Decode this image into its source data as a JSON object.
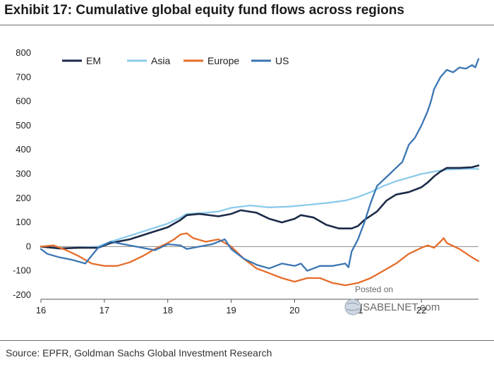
{
  "title": "Exhibit 17: Cumulative global equity fund flows across regions",
  "source": "Source: EPFR, Goldman Sachs Global Investment Research",
  "watermark": {
    "line1": "Posted on",
    "line2": "ISABELNET.com"
  },
  "chart_data": {
    "type": "line",
    "title": "Exhibit 17: Cumulative global equity fund flows across regions",
    "xlabel": "",
    "ylabel": "",
    "xlim": [
      16,
      22.9
    ],
    "ylim": [
      -200,
      800
    ],
    "y_ticks": [
      800,
      700,
      600,
      500,
      400,
      300,
      200,
      100,
      0,
      -100,
      -200
    ],
    "x_ticks": [
      16,
      17,
      18,
      19,
      20,
      21,
      22
    ],
    "x_tick_labels": [
      "16",
      "17",
      "18",
      "19",
      "20",
      "21",
      "22"
    ],
    "legend": "top-left",
    "series": [
      {
        "name": "EM",
        "color": "#1c2a48",
        "points": [
          [
            16,
            0
          ],
          [
            16.3,
            -8
          ],
          [
            16.6,
            -5
          ],
          [
            16.9,
            -5
          ],
          [
            17.1,
            15
          ],
          [
            17.4,
            30
          ],
          [
            17.7,
            55
          ],
          [
            18.0,
            80
          ],
          [
            18.2,
            110
          ],
          [
            18.3,
            130
          ],
          [
            18.5,
            135
          ],
          [
            18.8,
            125
          ],
          [
            19.0,
            135
          ],
          [
            19.15,
            150
          ],
          [
            19.4,
            140
          ],
          [
            19.6,
            115
          ],
          [
            19.8,
            100
          ],
          [
            20.0,
            115
          ],
          [
            20.1,
            130
          ],
          [
            20.3,
            120
          ],
          [
            20.5,
            90
          ],
          [
            20.7,
            75
          ],
          [
            20.9,
            75
          ],
          [
            21.0,
            85
          ],
          [
            21.1,
            110
          ],
          [
            21.3,
            145
          ],
          [
            21.45,
            190
          ],
          [
            21.6,
            215
          ],
          [
            21.8,
            225
          ],
          [
            22.0,
            245
          ],
          [
            22.1,
            265
          ],
          [
            22.2,
            290
          ],
          [
            22.3,
            310
          ],
          [
            22.4,
            325
          ],
          [
            22.6,
            325
          ],
          [
            22.8,
            328
          ],
          [
            22.9,
            335
          ]
        ]
      },
      {
        "name": "Asia",
        "color": "#8ccbec",
        "points": [
          [
            16,
            0
          ],
          [
            16.3,
            -8
          ],
          [
            16.6,
            -4
          ],
          [
            16.9,
            0
          ],
          [
            17.1,
            20
          ],
          [
            17.4,
            45
          ],
          [
            17.7,
            70
          ],
          [
            18.0,
            95
          ],
          [
            18.2,
            120
          ],
          [
            18.3,
            135
          ],
          [
            18.6,
            140
          ],
          [
            18.8,
            145
          ],
          [
            19.0,
            160
          ],
          [
            19.3,
            170
          ],
          [
            19.6,
            162
          ],
          [
            19.9,
            165
          ],
          [
            20.2,
            172
          ],
          [
            20.5,
            180
          ],
          [
            20.8,
            190
          ],
          [
            21.0,
            205
          ],
          [
            21.2,
            225
          ],
          [
            21.4,
            250
          ],
          [
            21.6,
            270
          ],
          [
            21.8,
            285
          ],
          [
            22.0,
            300
          ],
          [
            22.2,
            310
          ],
          [
            22.4,
            318
          ],
          [
            22.6,
            320
          ],
          [
            22.8,
            322
          ],
          [
            22.9,
            320
          ]
        ]
      },
      {
        "name": "Europe",
        "color": "#e56d2a",
        "points": [
          [
            16,
            0
          ],
          [
            16.2,
            5
          ],
          [
            16.4,
            -15
          ],
          [
            16.6,
            -40
          ],
          [
            16.8,
            -70
          ],
          [
            17.0,
            -80
          ],
          [
            17.2,
            -80
          ],
          [
            17.4,
            -65
          ],
          [
            17.6,
            -40
          ],
          [
            17.8,
            -10
          ],
          [
            18.0,
            15
          ],
          [
            18.1,
            30
          ],
          [
            18.2,
            50
          ],
          [
            18.3,
            55
          ],
          [
            18.4,
            35
          ],
          [
            18.6,
            20
          ],
          [
            18.8,
            30
          ],
          [
            19.0,
            0
          ],
          [
            19.2,
            -50
          ],
          [
            19.4,
            -90
          ],
          [
            19.6,
            -110
          ],
          [
            19.8,
            -130
          ],
          [
            20.0,
            -145
          ],
          [
            20.2,
            -130
          ],
          [
            20.4,
            -130
          ],
          [
            20.6,
            -150
          ],
          [
            20.8,
            -160
          ],
          [
            21.0,
            -150
          ],
          [
            21.2,
            -130
          ],
          [
            21.4,
            -100
          ],
          [
            21.6,
            -70
          ],
          [
            21.8,
            -30
          ],
          [
            22.0,
            -5
          ],
          [
            22.1,
            5
          ],
          [
            22.2,
            -5
          ],
          [
            22.3,
            20
          ],
          [
            22.35,
            35
          ],
          [
            22.4,
            15
          ],
          [
            22.6,
            -10
          ],
          [
            22.8,
            -45
          ],
          [
            22.9,
            -60
          ]
        ]
      },
      {
        "name": "US",
        "color": "#3a75b3",
        "points": [
          [
            16,
            -10
          ],
          [
            16.1,
            -30
          ],
          [
            16.3,
            -45
          ],
          [
            16.5,
            -55
          ],
          [
            16.7,
            -70
          ],
          [
            16.9,
            -5
          ],
          [
            17.1,
            20
          ],
          [
            17.3,
            10
          ],
          [
            17.5,
            0
          ],
          [
            17.8,
            -15
          ],
          [
            18.0,
            10
          ],
          [
            18.2,
            5
          ],
          [
            18.3,
            -10
          ],
          [
            18.5,
            0
          ],
          [
            18.7,
            10
          ],
          [
            18.9,
            30
          ],
          [
            19.0,
            -10
          ],
          [
            19.2,
            -50
          ],
          [
            19.4,
            -75
          ],
          [
            19.6,
            -90
          ],
          [
            19.8,
            -70
          ],
          [
            20.0,
            -80
          ],
          [
            20.1,
            -70
          ],
          [
            20.2,
            -100
          ],
          [
            20.4,
            -80
          ],
          [
            20.6,
            -80
          ],
          [
            20.8,
            -70
          ],
          [
            20.85,
            -85
          ],
          [
            20.9,
            -20
          ],
          [
            21.0,
            30
          ],
          [
            21.1,
            100
          ],
          [
            21.2,
            180
          ],
          [
            21.3,
            250
          ],
          [
            21.5,
            300
          ],
          [
            21.7,
            350
          ],
          [
            21.8,
            420
          ],
          [
            21.9,
            450
          ],
          [
            22.0,
            500
          ],
          [
            22.1,
            560
          ],
          [
            22.15,
            600
          ],
          [
            22.2,
            650
          ],
          [
            22.3,
            700
          ],
          [
            22.4,
            730
          ],
          [
            22.5,
            720
          ],
          [
            22.6,
            740
          ],
          [
            22.7,
            735
          ],
          [
            22.8,
            750
          ],
          [
            22.85,
            740
          ],
          [
            22.9,
            775
          ]
        ]
      }
    ]
  }
}
